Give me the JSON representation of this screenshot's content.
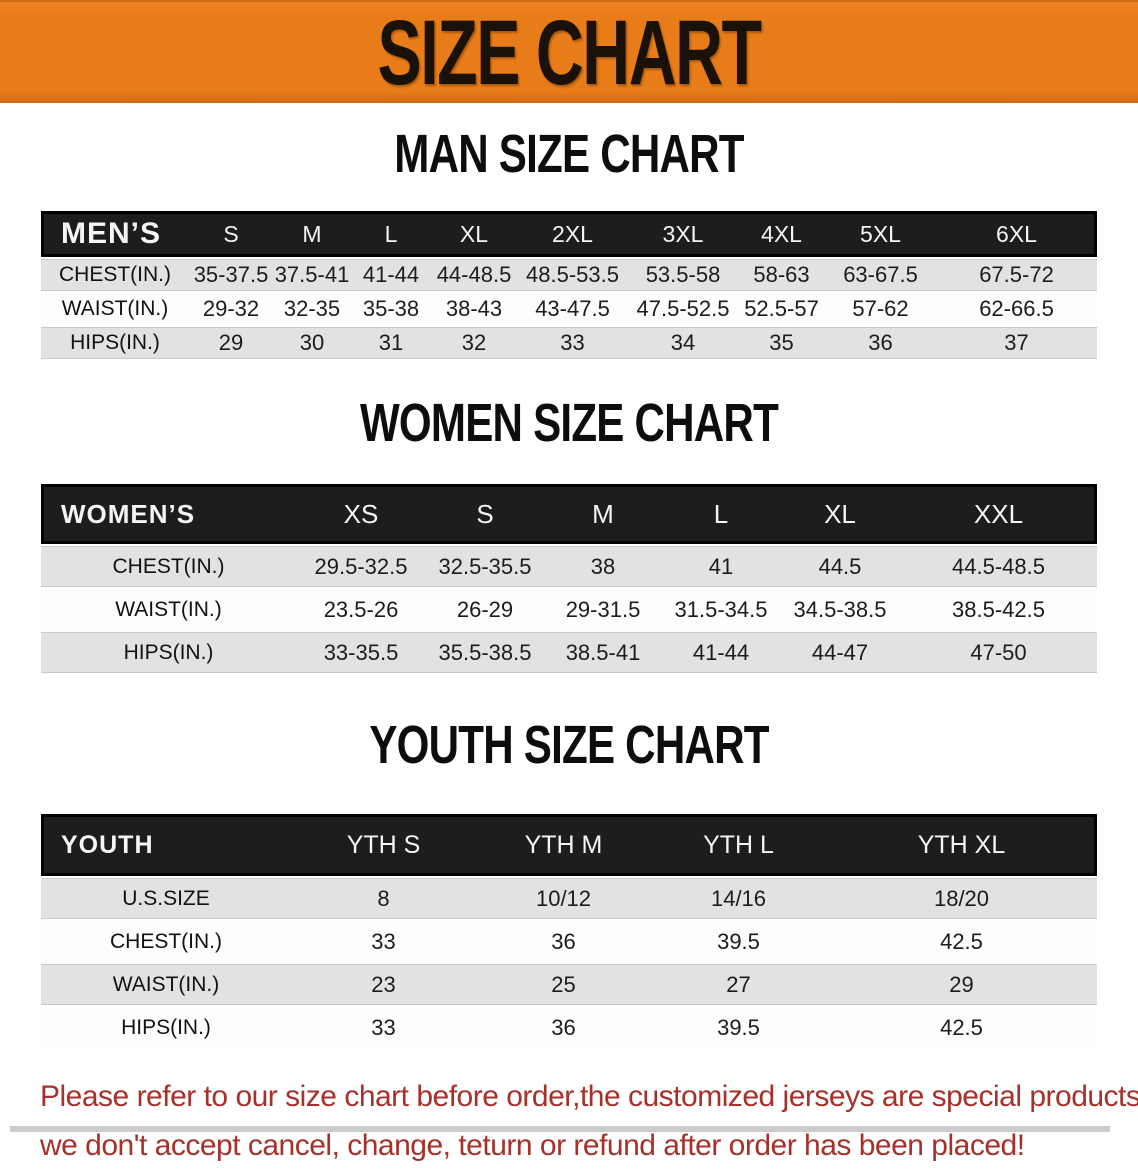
{
  "banner": {
    "title": "SIZE CHART",
    "background_color": "#e87c18",
    "text_color": "#1a1208"
  },
  "tables": [
    {
      "id": "mens",
      "heading": "MAN SIZE CHART",
      "group_label": "MEN’S",
      "columns": [
        "S",
        "M",
        "L",
        "XL",
        "2XL",
        "3XL",
        "4XL",
        "5XL",
        "6XL"
      ],
      "rows": [
        {
          "label": "CHEST(IN.)",
          "values": [
            "35-37.5",
            "37.5-41",
            "41-44",
            "44-48.5",
            "48.5-53.5",
            "53.5-58",
            "58-63",
            "63-67.5",
            "67.5-72"
          ]
        },
        {
          "label": "WAIST(IN.)",
          "values": [
            "29-32",
            "32-35",
            "35-38",
            "38-43",
            "43-47.5",
            "47.5-52.5",
            "52.5-57",
            "57-62",
            "62-66.5"
          ]
        },
        {
          "label": "HIPS(IN.)",
          "values": [
            "29",
            "30",
            "31",
            "32",
            "33",
            "34",
            "35",
            "36",
            "37"
          ]
        }
      ]
    },
    {
      "id": "womens",
      "heading": "WOMEN SIZE CHART",
      "group_label": "WOMEN’S",
      "columns": [
        "XS",
        "S",
        "M",
        "L",
        "XL",
        "XXL"
      ],
      "rows": [
        {
          "label": "CHEST(IN.)",
          "values": [
            "29.5-32.5",
            "32.5-35.5",
            "38",
            "41",
            "44.5",
            "44.5-48.5"
          ]
        },
        {
          "label": "WAIST(IN.)",
          "values": [
            "23.5-26",
            "26-29",
            "29-31.5",
            "31.5-34.5",
            "34.5-38.5",
            "38.5-42.5"
          ]
        },
        {
          "label": "HIPS(IN.)",
          "values": [
            "33-35.5",
            "35.5-38.5",
            "38.5-41",
            "41-44",
            "44-47",
            "47-50"
          ]
        }
      ]
    },
    {
      "id": "youth",
      "heading": "YOUTH SIZE CHART",
      "group_label": "YOUTH",
      "columns": [
        "YTH S",
        "YTH M",
        "YTH L",
        "YTH XL"
      ],
      "rows": [
        {
          "label": "U.S.SIZE",
          "values": [
            "8",
            "10/12",
            "14/16",
            "18/20"
          ]
        },
        {
          "label": "CHEST(IN.)",
          "values": [
            "33",
            "36",
            "39.5",
            "42.5"
          ]
        },
        {
          "label": "WAIST(IN.)",
          "values": [
            "23",
            "25",
            "27",
            "29"
          ]
        },
        {
          "label": "HIPS(IN.)",
          "values": [
            "33",
            "36",
            "39.5",
            "42.5"
          ]
        }
      ]
    }
  ],
  "disclaimer": {
    "line1": "Please refer to our size chart before order,the customized jerseys are special products,",
    "line2": "we don't accept cancel, change, teturn or refund after order has been placed!",
    "color": "#a6312b"
  },
  "colors": {
    "banner_orange": "#e87c18",
    "table_header_black": "#1d1d1d",
    "row_gray": "#e2e2e2",
    "row_white": "#fdfdfd"
  }
}
